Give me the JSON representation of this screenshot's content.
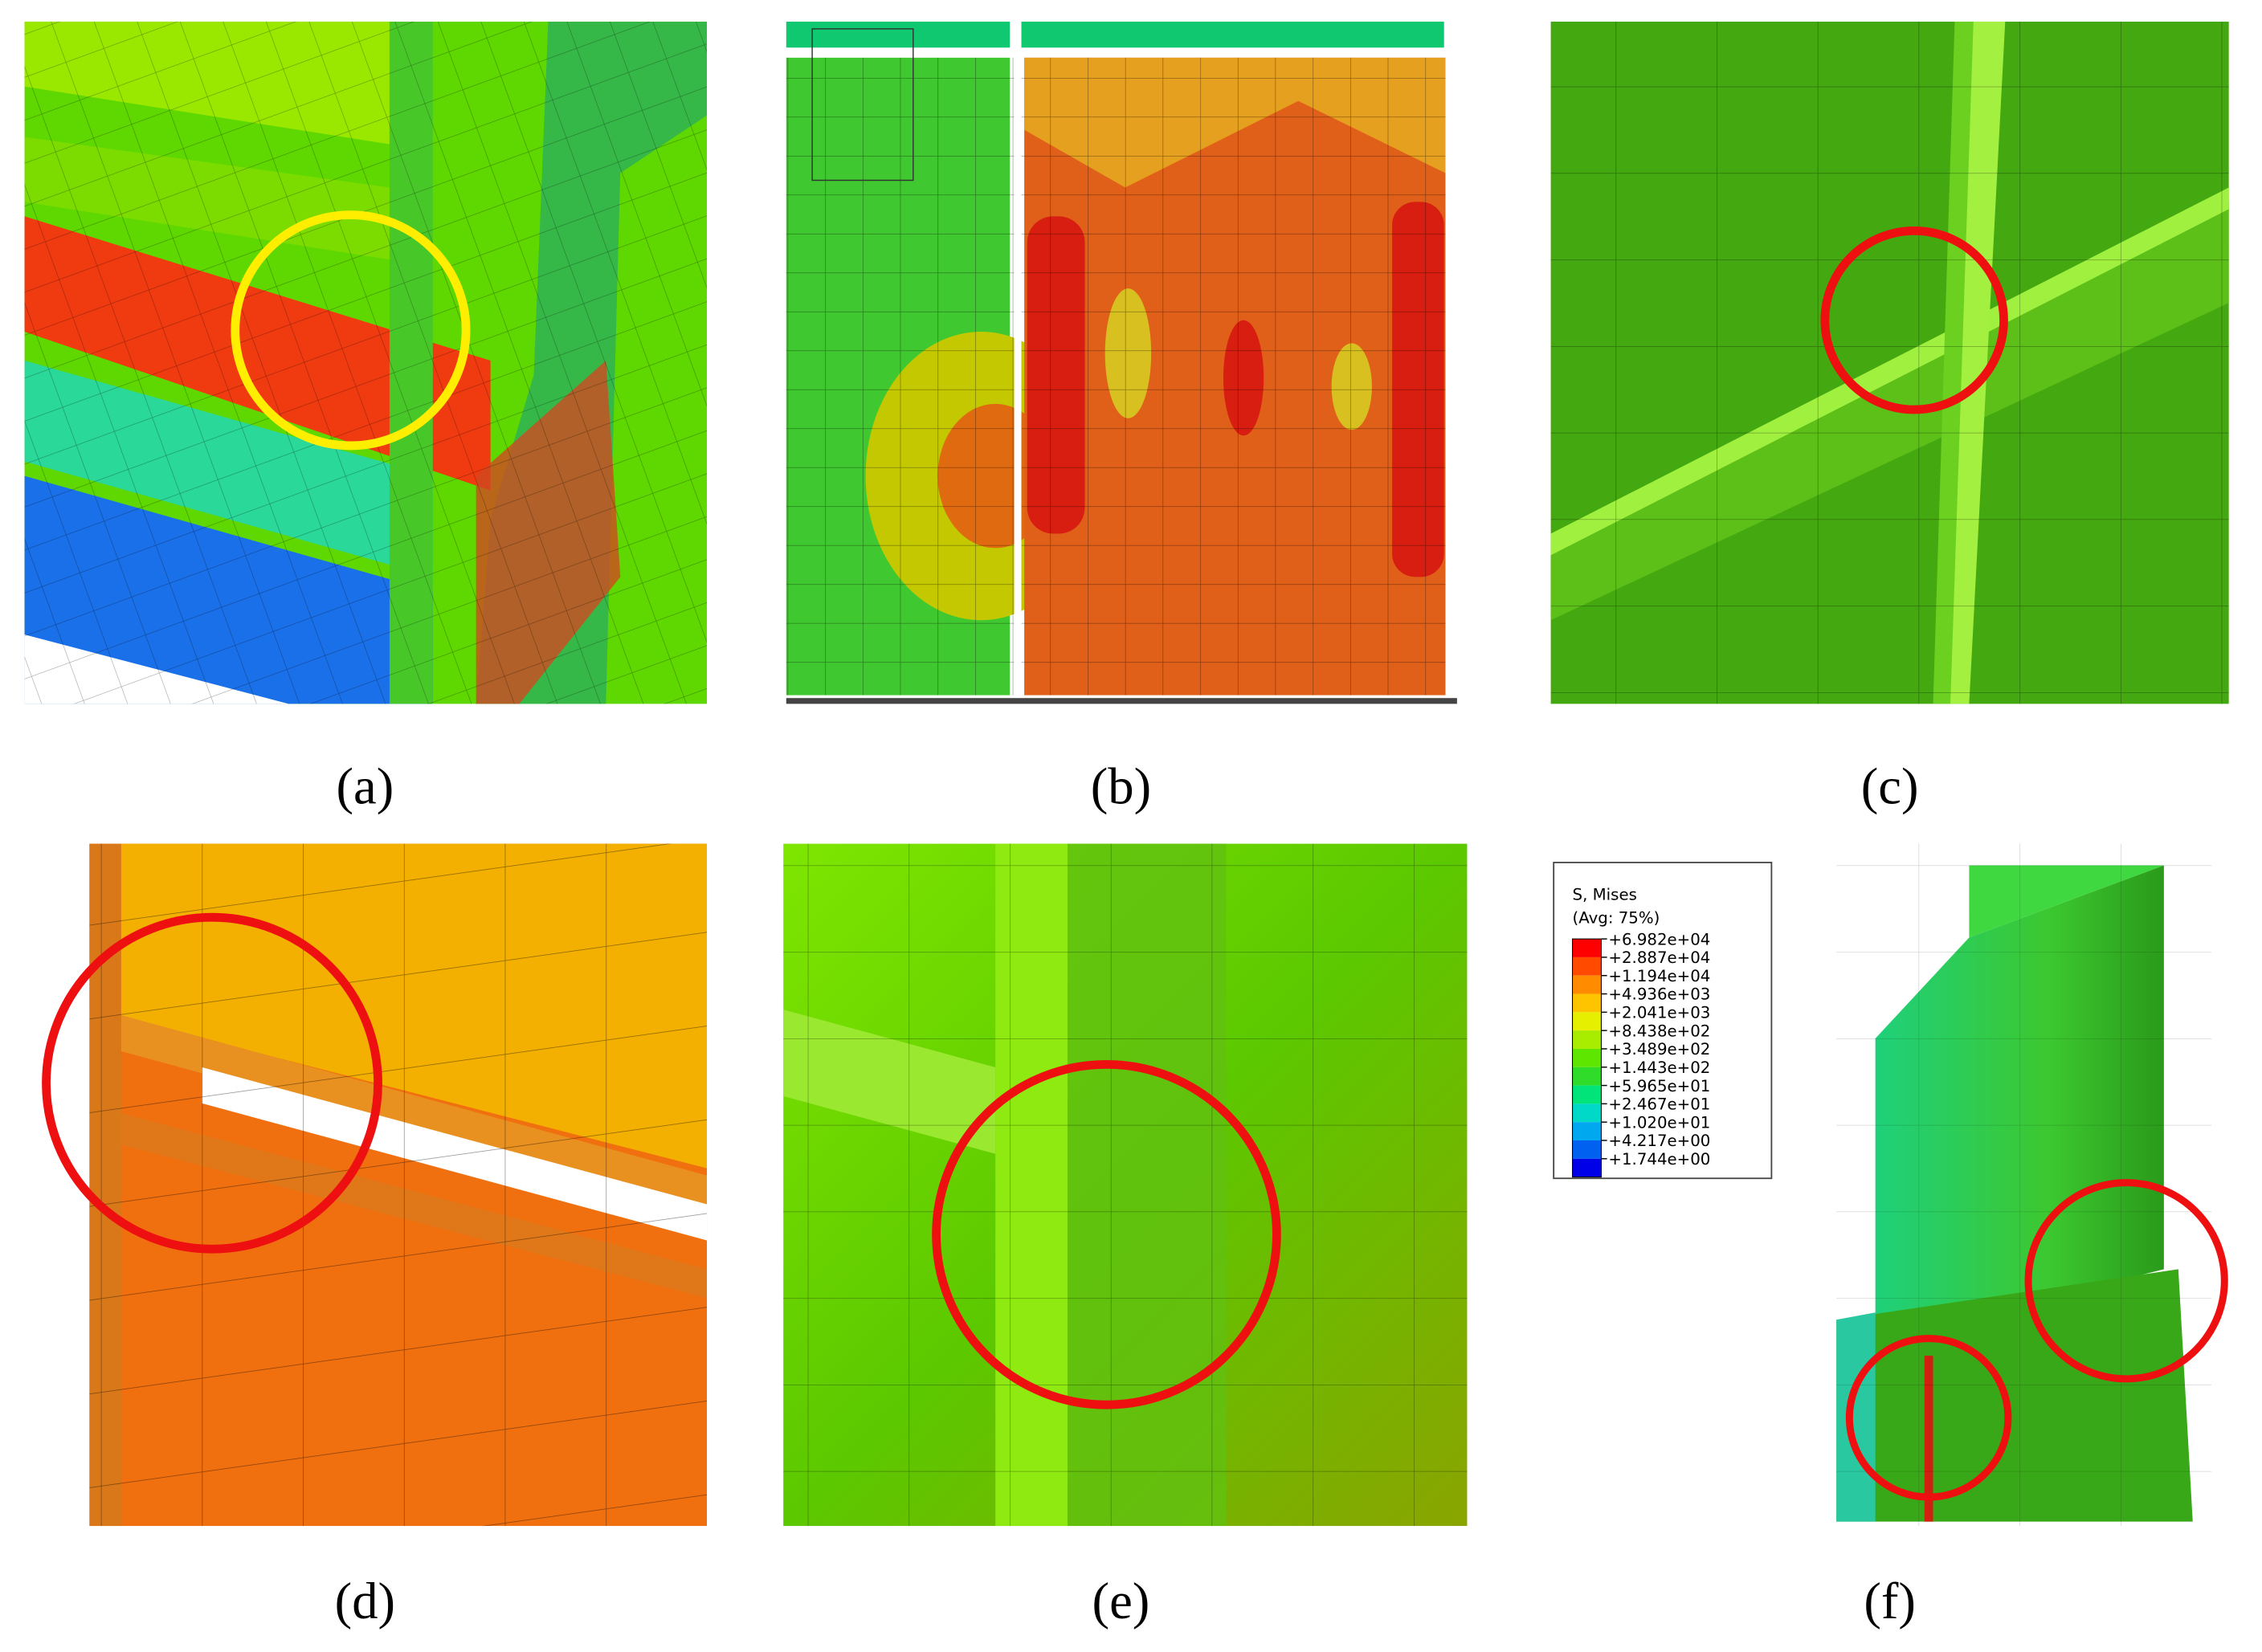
{
  "panels": [
    {
      "label": "(a)"
    },
    {
      "label": "(b)"
    },
    {
      "label": "(c)"
    },
    {
      "label": "(d)"
    },
    {
      "label": "(e)"
    },
    {
      "label": "(f)"
    }
  ],
  "legend": {
    "title": "S, Mises",
    "subtitle": "(Avg: 75%)",
    "values": [
      "+6.982e+04",
      "+2.887e+04",
      "+1.194e+04",
      "+4.936e+03",
      "+2.041e+03",
      "+8.438e+02",
      "+3.489e+02",
      "+1.443e+02",
      "+5.965e+01",
      "+2.467e+01",
      "+1.020e+01",
      "+4.217e+00",
      "+1.744e+00"
    ],
    "colors": [
      "#ff0000",
      "#ff4a00",
      "#ff8c00",
      "#ffc400",
      "#e6ef00",
      "#a8ec00",
      "#5fe600",
      "#2fdc2a",
      "#00e47a",
      "#00d8c8",
      "#00a8f0",
      "#0060f0",
      "#0000e8"
    ]
  }
}
